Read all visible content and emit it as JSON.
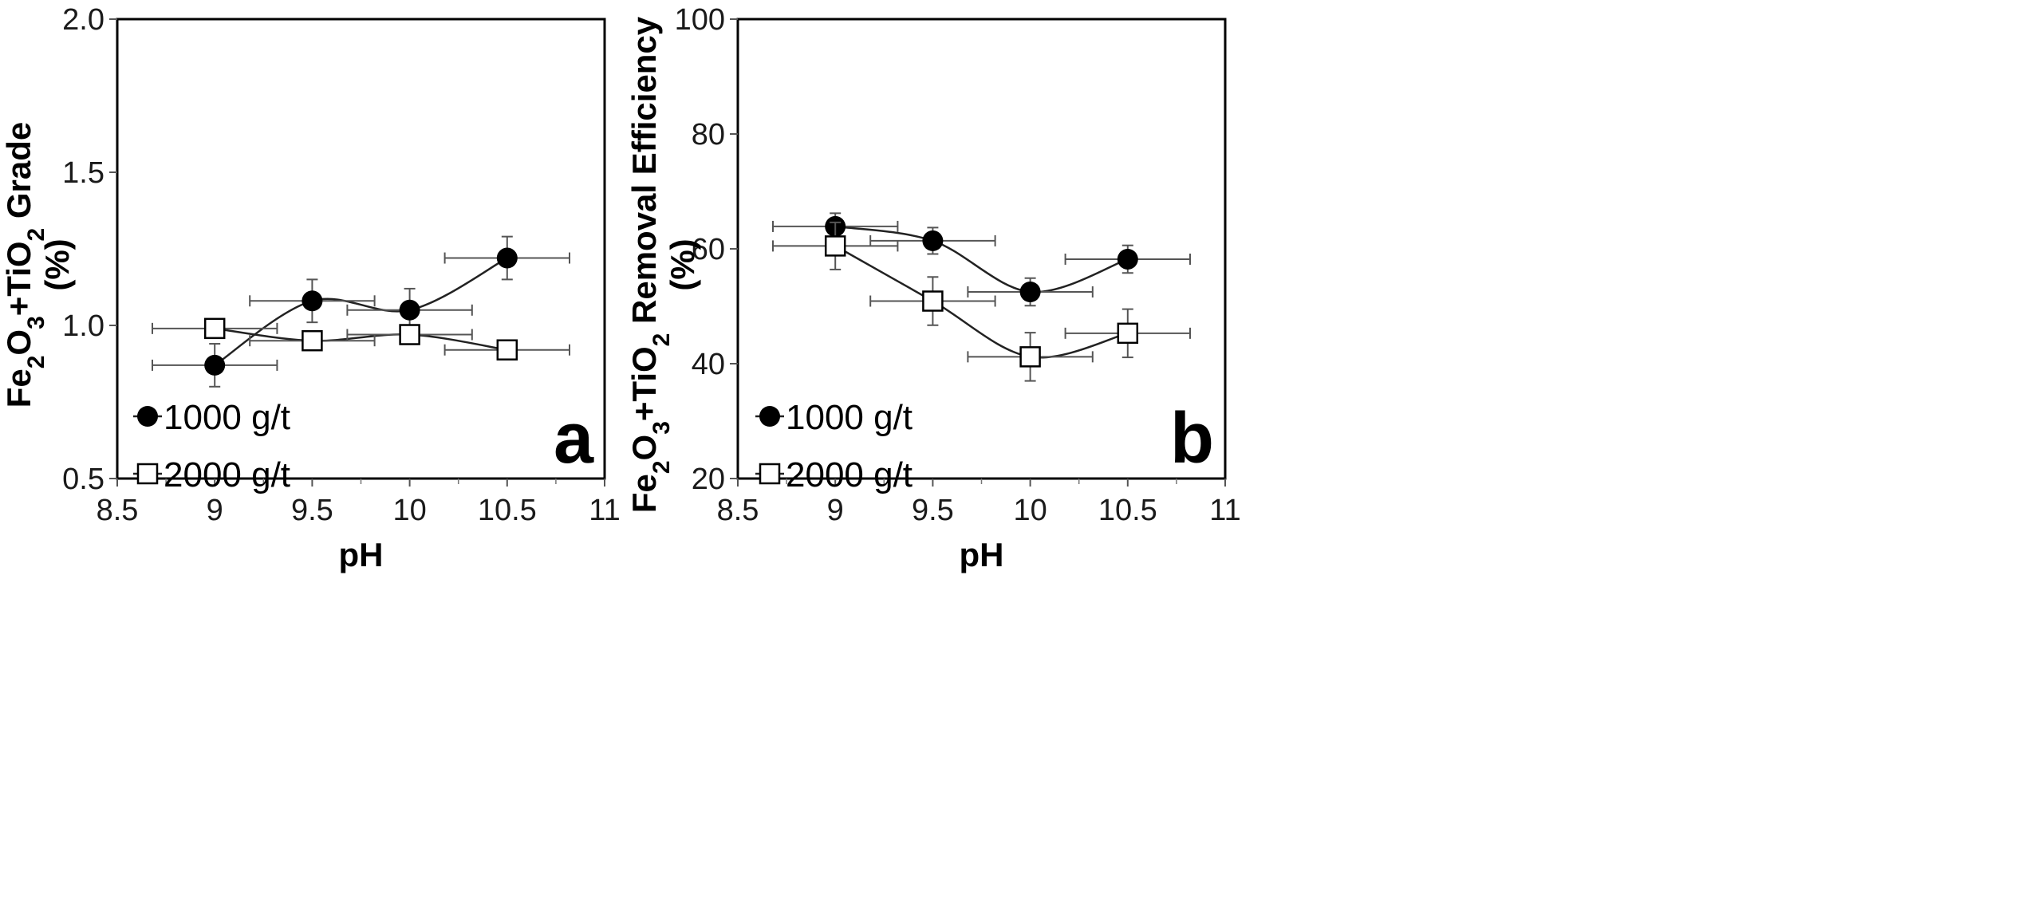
{
  "chart_data": [
    {
      "type": "line",
      "panel_label": "a",
      "xlabel": "pH",
      "ylabel": {
        "line1_parts": [
          {
            "text": "Fe",
            "sub": false
          },
          {
            "text": "2",
            "sub": true
          },
          {
            "text": "O",
            "sub": false
          },
          {
            "text": "3",
            "sub": true
          },
          {
            "text": "+TiO",
            "sub": false
          },
          {
            "text": "2",
            "sub": true
          },
          {
            "text": " Grade",
            "sub": false
          }
        ],
        "line2": "(%)"
      },
      "xlim": [
        8.5,
        11
      ],
      "ylim": [
        0.5,
        2.0
      ],
      "xticks": [
        "8.5",
        "9",
        "9.5",
        "10",
        "10.5",
        "11"
      ],
      "yticks": [
        "0.5",
        "1.0",
        "1.5",
        "2.0"
      ],
      "legend_position": "bottom-left",
      "series": [
        {
          "name": "1000 g/t",
          "marker": "filled-circle",
          "x": [
            9,
            9.5,
            10,
            10.5
          ],
          "y": [
            0.87,
            1.08,
            1.05,
            1.22
          ],
          "xerr": [
            0.32,
            0.32,
            0.32,
            0.32
          ],
          "yerr": [
            0.07,
            0.07,
            0.07,
            0.07
          ]
        },
        {
          "name": "2000 g/t",
          "marker": "open-square",
          "x": [
            9,
            9.5,
            10,
            10.5
          ],
          "y": [
            0.99,
            0.95,
            0.97,
            0.92
          ],
          "xerr": [
            0.32,
            0.32,
            0.32,
            0.32
          ],
          "yerr": [
            0.0,
            0.0,
            0.0,
            0.0
          ]
        }
      ]
    },
    {
      "type": "line",
      "panel_label": "b",
      "xlabel": "pH",
      "ylabel": {
        "line1_parts": [
          {
            "text": "Fe",
            "sub": false
          },
          {
            "text": "2",
            "sub": true
          },
          {
            "text": "O",
            "sub": false
          },
          {
            "text": "3",
            "sub": true
          },
          {
            "text": "+TiO",
            "sub": false
          },
          {
            "text": "2",
            "sub": true
          },
          {
            "text": " Removal Efficiency",
            "sub": false
          }
        ],
        "line2": "(%)"
      },
      "xlim": [
        8.5,
        11
      ],
      "ylim": [
        20,
        100
      ],
      "xticks": [
        "8.5",
        "9",
        "9.5",
        "10",
        "10.5",
        "11"
      ],
      "yticks": [
        "20",
        "40",
        "60",
        "80",
        "100"
      ],
      "legend_position": "bottom-left",
      "series": [
        {
          "name": "1000 g/t",
          "marker": "filled-circle",
          "x": [
            9,
            9.5,
            10,
            10.5
          ],
          "y": [
            63.9,
            61.4,
            52.5,
            58.2
          ],
          "xerr": [
            0.32,
            0.32,
            0.32,
            0.32
          ],
          "yerr": [
            2.3,
            2.3,
            2.4,
            2.4
          ]
        },
        {
          "name": "2000 g/t",
          "marker": "open-square",
          "x": [
            9,
            9.5,
            10,
            10.5
          ],
          "y": [
            60.5,
            50.9,
            41.2,
            45.3
          ],
          "xerr": [
            0.32,
            0.32,
            0.32,
            0.32
          ],
          "yerr": [
            4.1,
            4.2,
            4.2,
            4.2
          ]
        }
      ]
    }
  ]
}
